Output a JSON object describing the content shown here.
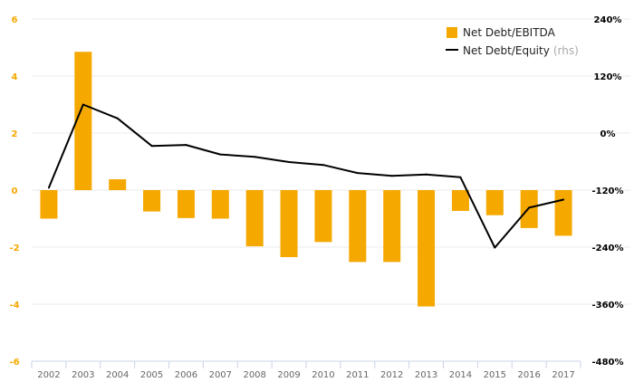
{
  "chart_data": {
    "type": "bar",
    "categories": [
      "2002",
      "2003",
      "2004",
      "2005",
      "2006",
      "2007",
      "2008",
      "2009",
      "2010",
      "2011",
      "2012",
      "2013",
      "2014",
      "2015",
      "2016",
      "2017"
    ],
    "series": [
      {
        "name": "Net Debt/EBITDA",
        "type": "bar",
        "axis": "left",
        "values": [
          -1.0,
          4.85,
          0.38,
          -0.75,
          -0.98,
          -1.0,
          -1.97,
          -2.35,
          -1.82,
          -2.52,
          -2.52,
          -4.08,
          -0.73,
          -0.88,
          -1.33,
          -1.6
        ]
      },
      {
        "name": "Net Debt/Equity",
        "name_note": "(rhs)",
        "type": "line",
        "axis": "right",
        "values": [
          -115,
          60,
          31,
          -27,
          -25,
          -45,
          -50,
          -61,
          -67,
          -84,
          -90,
          -87,
          -93,
          -241,
          -157,
          -140
        ]
      }
    ],
    "y_left": {
      "ylim": [
        -6,
        6
      ],
      "ticks": [
        "6",
        "4",
        "2",
        "0",
        "-2",
        "-4",
        "-6"
      ]
    },
    "y_right": {
      "ylim": [
        -480,
        240
      ],
      "ticks": [
        "240%",
        "120%",
        "0%",
        "-120%",
        "-240%",
        "-360%",
        "-480%"
      ]
    },
    "grid": true,
    "legend_position": "top-right",
    "colors": {
      "bar": "#f5a800",
      "line": "#000000",
      "grid": "#ebebeb",
      "axis": "#c9d3e6"
    }
  }
}
